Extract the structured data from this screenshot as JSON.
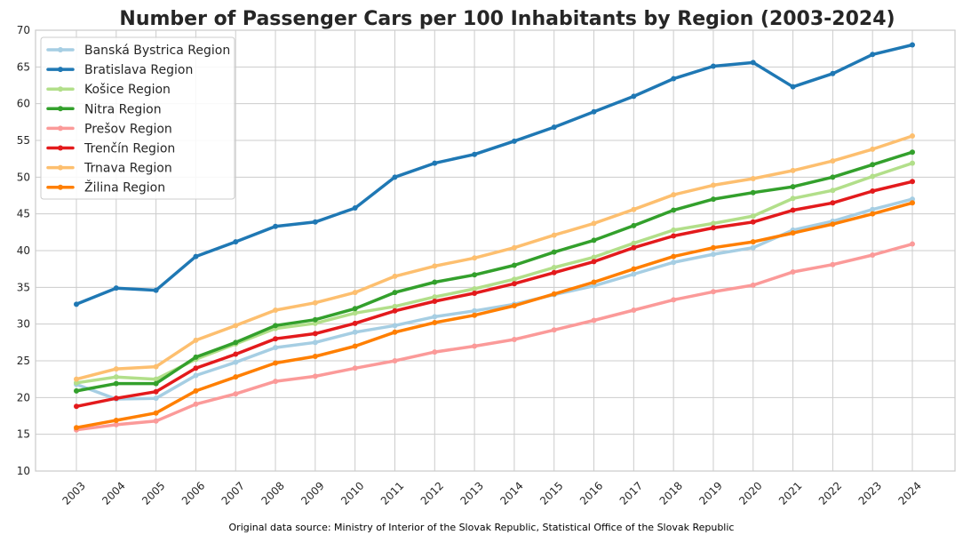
{
  "chart_data": {
    "type": "line",
    "title": "Number of Passenger Cars per 100 Inhabitants by Region (2003-2024)",
    "xlabel": "",
    "ylabel": "",
    "ylim": [
      10,
      70
    ],
    "y_ticks": [
      10,
      15,
      20,
      25,
      30,
      35,
      40,
      45,
      50,
      55,
      60,
      65,
      70
    ],
    "grid": true,
    "legend_position": "top-left",
    "categories": [
      "2003",
      "2004",
      "2005",
      "2006",
      "2007",
      "2008",
      "2009",
      "2010",
      "2011",
      "2012",
      "2013",
      "2014",
      "2015",
      "2016",
      "2017",
      "2018",
      "2019",
      "2020",
      "2021",
      "2022",
      "2023",
      "2024"
    ],
    "series": [
      {
        "name": "Banská Bystrica Region",
        "color": "#a6cee3",
        "values": [
          21.8,
          19.8,
          19.9,
          23.0,
          24.8,
          26.8,
          27.5,
          28.9,
          29.8,
          31.0,
          31.8,
          32.7,
          34.0,
          35.2,
          36.8,
          38.4,
          39.5,
          40.4,
          42.8,
          44.0,
          45.6,
          47.0
        ]
      },
      {
        "name": "Bratislava Region",
        "color": "#1f78b4",
        "values": [
          32.7,
          34.9,
          34.6,
          39.2,
          41.2,
          43.3,
          43.9,
          45.8,
          50.0,
          51.9,
          53.1,
          54.9,
          56.8,
          58.9,
          61.0,
          63.4,
          65.1,
          65.6,
          62.3,
          64.1,
          66.7,
          68.0
        ]
      },
      {
        "name": "Košice Region",
        "color": "#b2df8a",
        "values": [
          22.0,
          22.8,
          22.5,
          25.2,
          27.3,
          29.4,
          30.1,
          31.5,
          32.4,
          33.7,
          34.8,
          36.1,
          37.7,
          39.1,
          41.0,
          42.8,
          43.7,
          44.7,
          47.1,
          48.2,
          50.1,
          51.9
        ]
      },
      {
        "name": "Nitra Region",
        "color": "#33a02c",
        "values": [
          20.9,
          21.9,
          21.9,
          25.5,
          27.5,
          29.8,
          30.6,
          32.1,
          34.3,
          35.7,
          36.7,
          38.0,
          39.8,
          41.4,
          43.4,
          45.5,
          47.0,
          47.9,
          48.7,
          50.0,
          51.7,
          53.4
        ]
      },
      {
        "name": "Prešov Region",
        "color": "#fb9a99",
        "values": [
          15.6,
          16.3,
          16.8,
          19.1,
          20.5,
          22.2,
          22.9,
          24.0,
          25.0,
          26.2,
          27.0,
          27.9,
          29.2,
          30.5,
          31.9,
          33.3,
          34.4,
          35.3,
          37.1,
          38.1,
          39.4,
          40.9
        ]
      },
      {
        "name": "Trenčín Region",
        "color": "#e31a1c",
        "values": [
          18.8,
          19.9,
          20.8,
          24.0,
          25.9,
          28.0,
          28.7,
          30.1,
          31.8,
          33.1,
          34.2,
          35.5,
          37.0,
          38.5,
          40.4,
          42.0,
          43.1,
          43.9,
          45.5,
          46.5,
          48.1,
          49.4
        ]
      },
      {
        "name": "Trnava Region",
        "color": "#fdbf6f",
        "values": [
          22.5,
          23.9,
          24.2,
          27.8,
          29.8,
          31.9,
          32.9,
          34.3,
          36.5,
          37.9,
          39.0,
          40.4,
          42.1,
          43.7,
          45.6,
          47.6,
          48.9,
          49.8,
          50.9,
          52.2,
          53.8,
          55.6
        ]
      },
      {
        "name": "Žilina Region",
        "color": "#ff7f00",
        "values": [
          15.9,
          16.9,
          17.9,
          20.9,
          22.8,
          24.7,
          25.6,
          27.0,
          28.9,
          30.2,
          31.2,
          32.5,
          34.1,
          35.7,
          37.5,
          39.2,
          40.4,
          41.2,
          42.4,
          43.6,
          45.0,
          46.5
        ]
      }
    ],
    "source_note": "Original data source: Ministry of Interior of the Slovak Republic, Statistical Office of the Slovak Republic"
  }
}
